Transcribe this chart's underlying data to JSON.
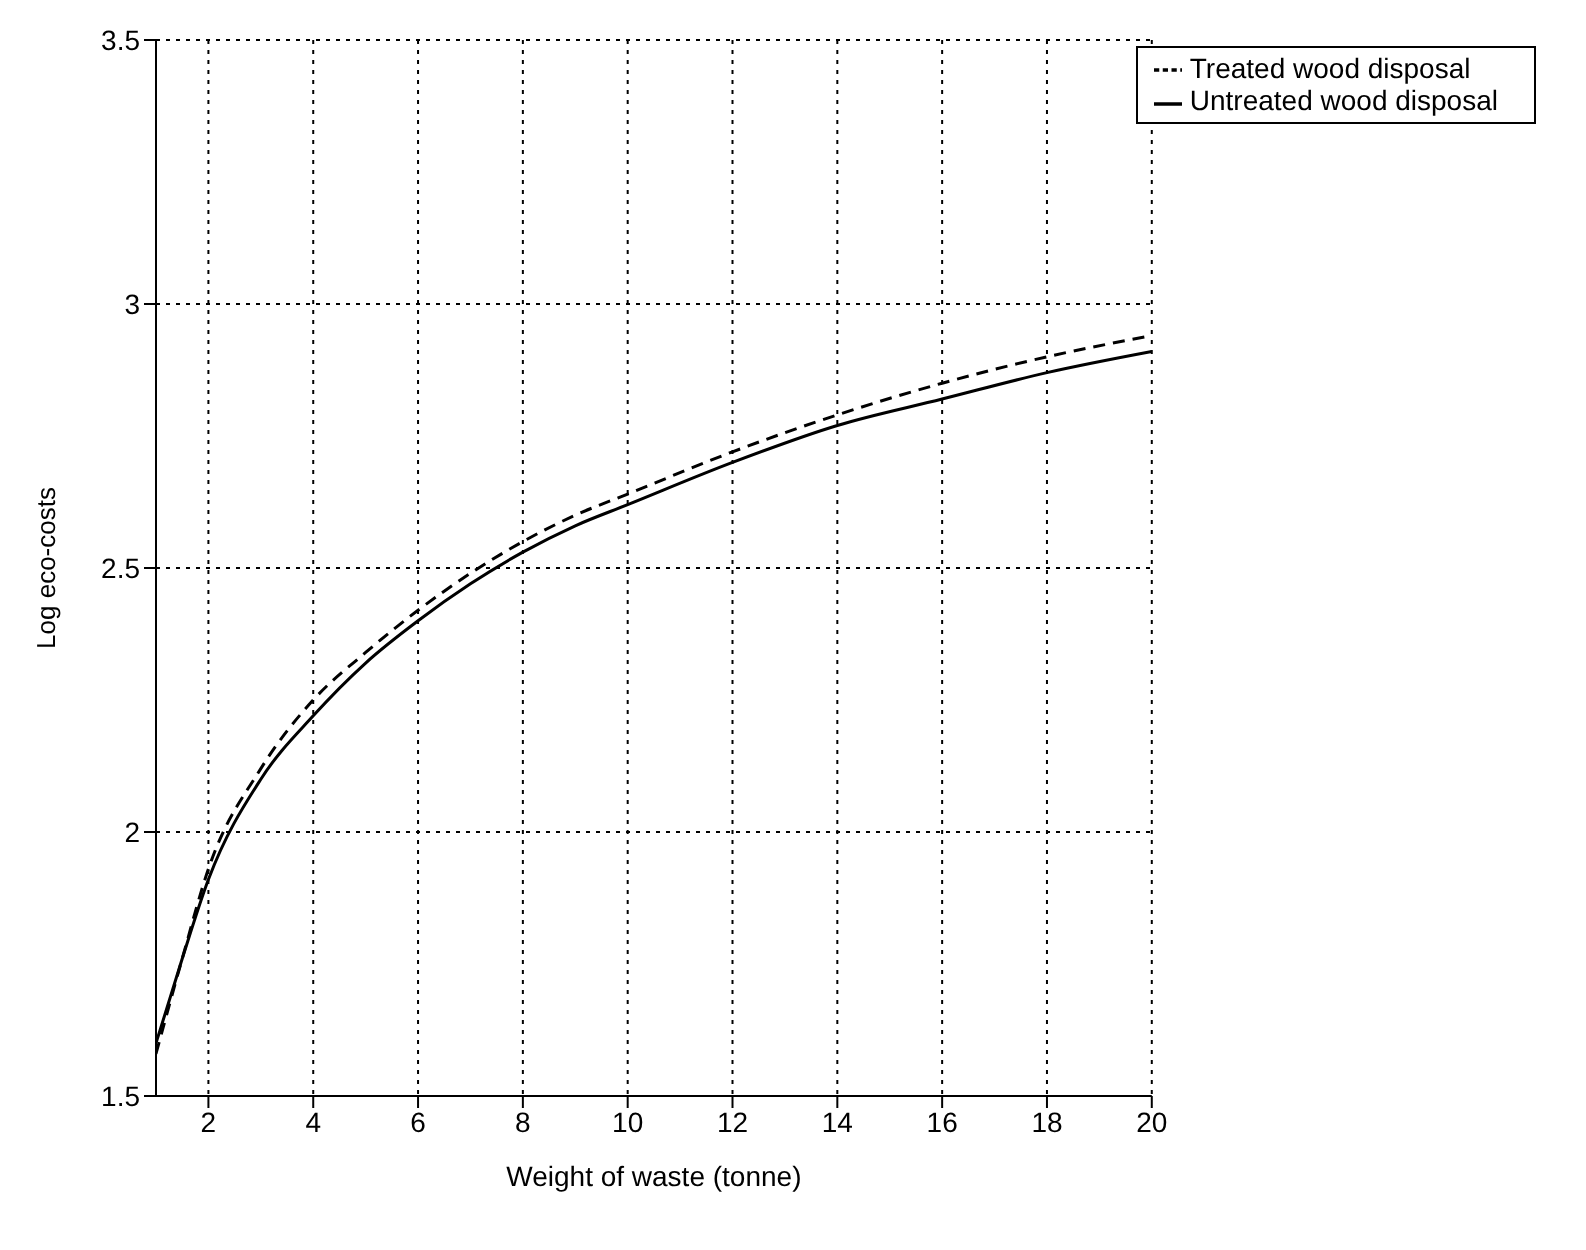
{
  "chart_data": {
    "type": "line",
    "xlabel": "Weight of waste (tonne)",
    "ylabel": "Log eco-costs",
    "x": [
      1,
      1.5,
      2,
      3,
      4,
      5,
      6,
      7,
      8,
      9,
      10,
      12,
      14,
      16,
      18,
      20
    ],
    "series": [
      {
        "name": "Treated wood disposal",
        "color": "#000000",
        "line_style": "dashed",
        "values": [
          1.58,
          1.76,
          1.93,
          2.12,
          2.25,
          2.34,
          2.42,
          2.49,
          2.55,
          2.6,
          2.64,
          2.72,
          2.79,
          2.85,
          2.9,
          2.94
        ]
      },
      {
        "name": "Untreated wood disposal",
        "color": "#000000",
        "line_style": "solid",
        "values": [
          1.6,
          1.76,
          1.91,
          2.1,
          2.22,
          2.32,
          2.4,
          2.47,
          2.53,
          2.58,
          2.62,
          2.7,
          2.77,
          2.82,
          2.87,
          2.91
        ]
      }
    ],
    "xlim": [
      1,
      20
    ],
    "xticks": [
      2,
      4,
      6,
      8,
      10,
      12,
      14,
      16,
      18,
      20
    ],
    "ylim": [
      1.5,
      3.5
    ],
    "yticks": [
      1.5,
      2,
      2.5,
      3,
      3.5
    ],
    "grid": true,
    "legend": "top right",
    "marker": "none"
  }
}
